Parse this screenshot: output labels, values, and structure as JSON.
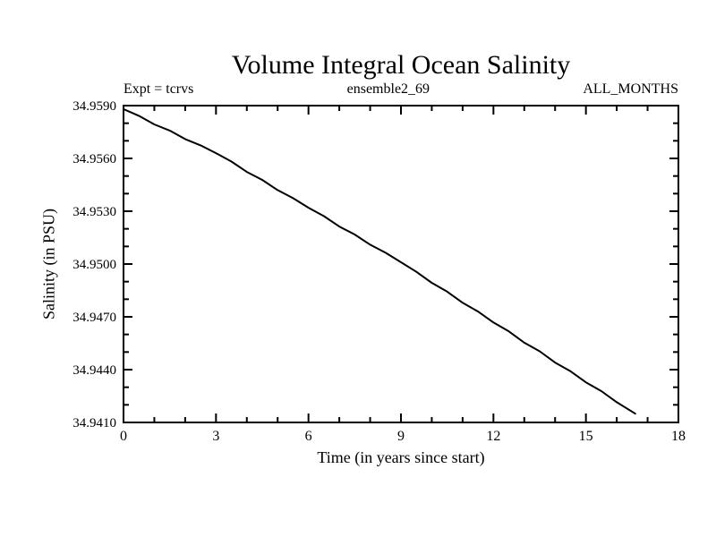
{
  "chart_data": {
    "type": "line",
    "title": "Volume Integral Ocean Salinity",
    "annotations": {
      "left": "Expt = tcrvs",
      "center": "ensemble2_69",
      "right": "ALL_MONTHS"
    },
    "xlabel": "Time (in years since start)",
    "ylabel": "Salinity (in PSU)",
    "xlim": [
      0,
      18
    ],
    "ylim": [
      34.941,
      34.959
    ],
    "x_major_ticks": [
      0,
      3,
      6,
      9,
      12,
      15,
      18
    ],
    "x_tick_labels": [
      "0",
      "3",
      "6",
      "9",
      "12",
      "15",
      "18"
    ],
    "x_minor_step": 1,
    "y_major_ticks": [
      34.959,
      34.956,
      34.953,
      34.95,
      34.947,
      34.944,
      34.941
    ],
    "y_tick_labels": [
      "34.9590",
      "34.9560",
      "34.9530",
      "34.9500",
      "34.9470",
      "34.9440",
      "34.9410"
    ],
    "y_minor_step": 0.001,
    "grid": false,
    "legend": "none",
    "line_color": "#000000",
    "frame_color": "#000000",
    "background": "#ffffff",
    "series": [
      {
        "name": "volume-integral-salinity",
        "x": [
          0,
          0.5,
          1,
          1.5,
          2,
          2.5,
          3,
          3.5,
          4,
          4.5,
          5,
          5.5,
          6,
          6.5,
          7,
          7.5,
          8,
          8.5,
          9,
          9.5,
          10,
          10.5,
          11,
          11.5,
          12,
          12.5,
          13,
          13.5,
          14,
          14.5,
          15,
          15.5,
          16,
          16.6
        ],
        "y": [
          34.9588,
          34.95842,
          34.95793,
          34.95758,
          34.9571,
          34.95674,
          34.9563,
          34.95582,
          34.95523,
          34.95478,
          34.9542,
          34.95374,
          34.9532,
          34.95272,
          34.95213,
          34.95168,
          34.9511,
          34.95064,
          34.9501,
          34.94956,
          34.94893,
          34.94843,
          34.9478,
          34.9473,
          34.94668,
          34.94617,
          34.94553,
          34.94504,
          34.9444,
          34.94391,
          34.94328,
          34.94278,
          34.94215,
          34.9415
        ]
      }
    ]
  }
}
